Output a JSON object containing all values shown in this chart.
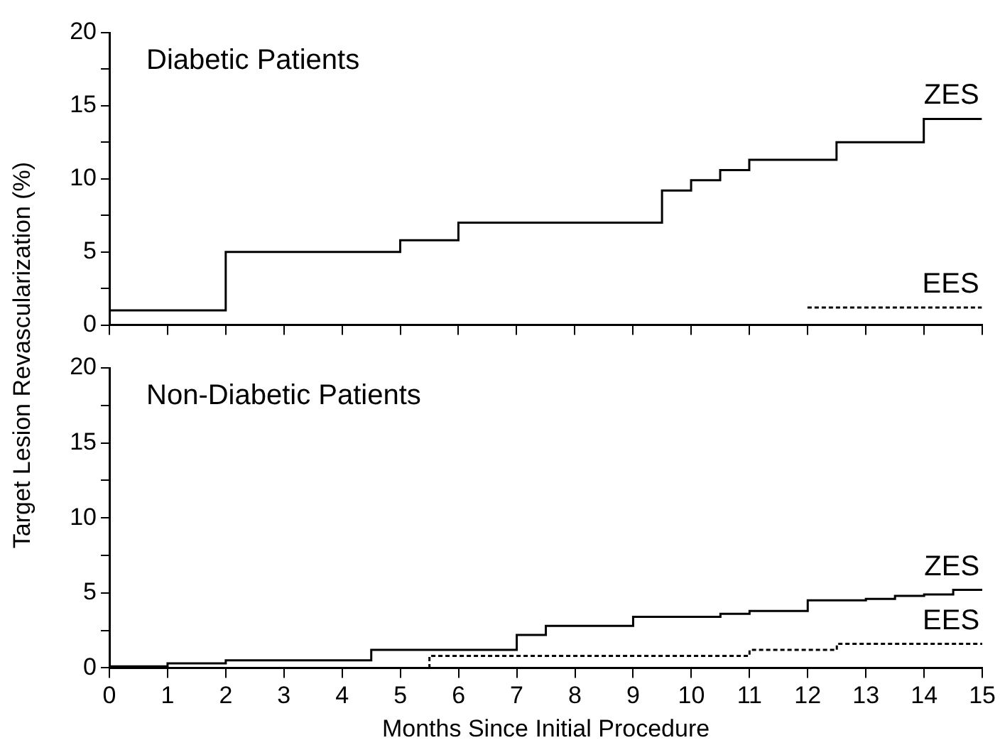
{
  "chart_data": [
    {
      "type": "step",
      "title": "Diabetic Patients",
      "ylabel": "Target Lesion Revascularization (%)",
      "xlim": [
        0,
        15
      ],
      "xticks": [
        {
          "value": 0,
          "label": null
        },
        {
          "value": 1,
          "label": null
        },
        {
          "value": 2,
          "label": null
        },
        {
          "value": 3,
          "label": null
        },
        {
          "value": 4,
          "label": null
        },
        {
          "value": 5,
          "label": null
        },
        {
          "value": 6,
          "label": null
        },
        {
          "value": 7,
          "label": null
        },
        {
          "value": 8,
          "label": null
        },
        {
          "value": 9,
          "label": null
        },
        {
          "value": 10,
          "label": null
        },
        {
          "value": 11,
          "label": null
        },
        {
          "value": 12,
          "label": null
        },
        {
          "value": 13,
          "label": null
        },
        {
          "value": 14,
          "label": null
        },
        {
          "value": 15,
          "label": null
        }
      ],
      "ylim": [
        0,
        20
      ],
      "yticks": [
        0,
        {
          "value": 2.5,
          "label": null
        },
        5,
        {
          "value": 7.5,
          "label": null
        },
        10,
        {
          "value": 12.5,
          "label": null
        },
        15,
        {
          "value": 17.5,
          "label": null
        },
        20
      ],
      "grid": false,
      "legend": false,
      "tick_labels": "y",
      "series": [
        {
          "name": "ZES",
          "color": "#000000",
          "line_style": "solid",
          "x": [
            0,
            2,
            5,
            6,
            9.5,
            10,
            10.5,
            11,
            12.5,
            14,
            15
          ],
          "values": [
            1.0,
            5.0,
            5.8,
            7.0,
            9.2,
            9.9,
            10.6,
            11.3,
            12.5,
            14.1,
            14.1
          ]
        },
        {
          "name": "EES",
          "color": "#000000",
          "line_style": "dotted",
          "x": [
            12,
            15
          ],
          "values": [
            1.2,
            1.2
          ]
        }
      ]
    },
    {
      "type": "step",
      "title": "Non-Diabetic Patients",
      "xlabel": "Months Since Initial Procedure",
      "xlim": [
        0,
        15
      ],
      "xticks": [
        0,
        1,
        2,
        3,
        4,
        5,
        6,
        7,
        8,
        9,
        10,
        11,
        12,
        13,
        14,
        15
      ],
      "ylim": [
        0,
        20
      ],
      "yticks": [
        0,
        {
          "value": 2.5,
          "label": null
        },
        5,
        {
          "value": 7.5,
          "label": null
        },
        10,
        {
          "value": 12.5,
          "label": null
        },
        15,
        {
          "value": 17.5,
          "label": null
        },
        20
      ],
      "grid": false,
      "legend": false,
      "series": [
        {
          "name": "ZES",
          "color": "#000000",
          "line_style": "solid",
          "x": [
            0,
            1,
            2,
            4.5,
            7,
            7.5,
            9,
            10.5,
            11,
            12,
            13,
            13.5,
            14,
            14.5,
            15
          ],
          "values": [
            0.1,
            0.3,
            0.5,
            1.2,
            2.2,
            2.8,
            3.4,
            3.6,
            3.8,
            4.5,
            4.6,
            4.8,
            4.9,
            5.2,
            5.2
          ]
        },
        {
          "name": "EES",
          "color": "#000000",
          "line_style": "dotted",
          "x": [
            0,
            5.5,
            11,
            12.5,
            15
          ],
          "values": [
            0,
            0.8,
            1.2,
            1.6,
            1.6
          ]
        }
      ]
    }
  ]
}
